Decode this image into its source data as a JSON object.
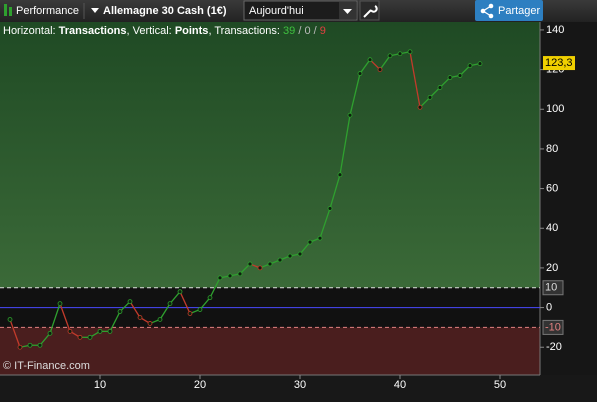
{
  "toolbar": {
    "menu": "Performance",
    "instrument": "Allemagne 30 Cash (1€)",
    "period": "Aujourd'hui",
    "share": "Partager"
  },
  "info": {
    "horizontal_label": "Horizontal:",
    "horizontal": "Transactions",
    "vertical_label": ", Vertical:",
    "vertical": "Points",
    "transactions_label": ", Transactions:",
    "wins": 39,
    "separator": "/",
    "neutral": 0,
    "losses": 9
  },
  "copyright": "© IT-Finance.com",
  "chart_data": {
    "type": "line",
    "x": [
      1,
      2,
      3,
      4,
      5,
      6,
      7,
      8,
      9,
      10,
      11,
      12,
      13,
      14,
      15,
      16,
      17,
      18,
      19,
      20,
      21,
      22,
      23,
      24,
      25,
      26,
      27,
      28,
      29,
      30,
      31,
      32,
      33,
      34,
      35,
      36,
      37,
      38,
      39,
      40,
      41,
      42,
      43,
      44,
      45,
      46,
      47,
      48
    ],
    "values": [
      -6,
      -20,
      -19,
      -19,
      -13,
      2,
      -12,
      -15,
      -15,
      -12,
      -12,
      -2,
      3,
      -5,
      -8,
      -6,
      2,
      8,
      -3,
      -1,
      5,
      15,
      16,
      17,
      22,
      20,
      22,
      24,
      26,
      27,
      33,
      35,
      50,
      67,
      97,
      118,
      125,
      120,
      127,
      128,
      129,
      101,
      106,
      111,
      116,
      117,
      122,
      123
    ],
    "xlim": [
      0,
      54
    ],
    "ylim": [
      -34,
      144
    ],
    "xticks": [
      10,
      20,
      30,
      40,
      50
    ],
    "yticks": [
      140,
      120,
      100,
      80,
      60,
      40,
      20,
      0,
      -20
    ],
    "up_color": "#2fa02f",
    "down_color": "#c23b2b",
    "zero_line_color": "#4a4aff",
    "levels": [
      10,
      -10
    ],
    "last_value": {
      "value": 123.3,
      "label": "123,3"
    }
  }
}
